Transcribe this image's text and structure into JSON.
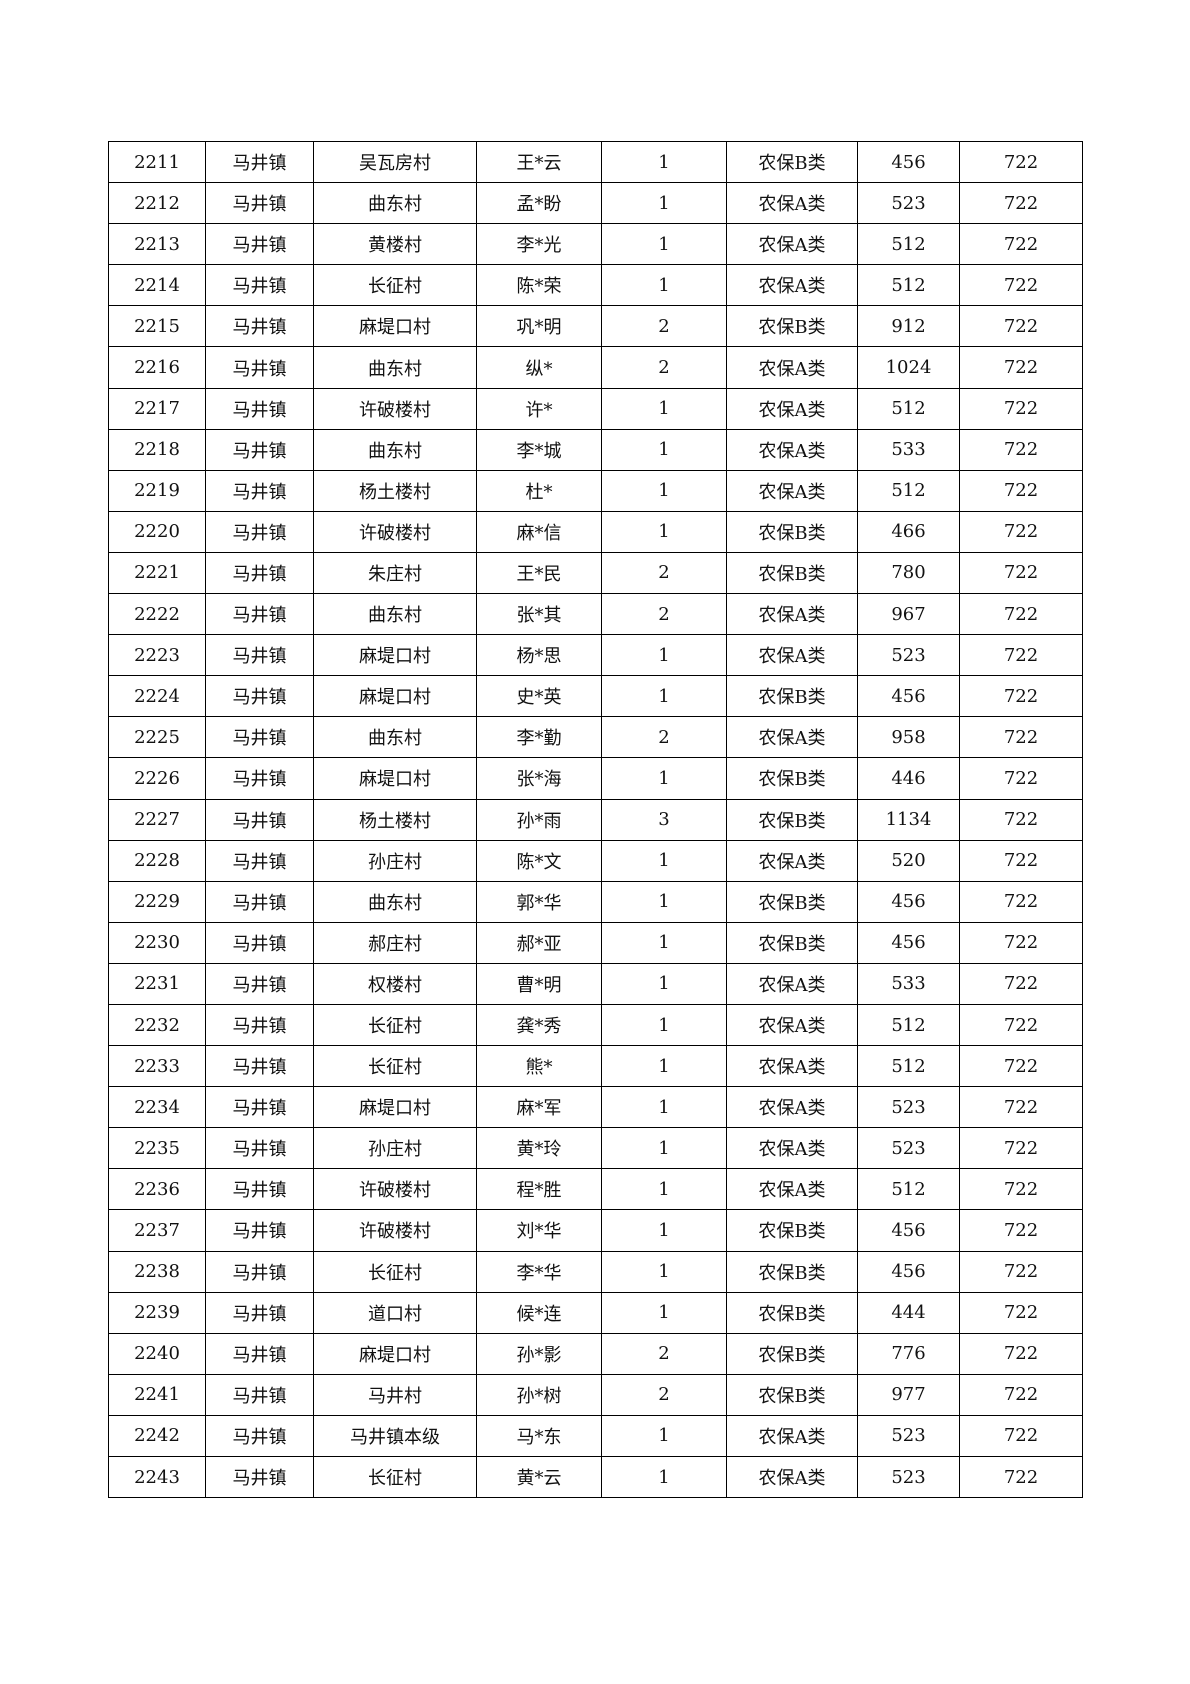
{
  "rows": [
    [
      "2211",
      "马井镇",
      "吴瓦房村",
      "王*云",
      "1",
      "农保B类",
      "456",
      "722"
    ],
    [
      "2212",
      "马井镇",
      "曲东村",
      "孟*盼",
      "1",
      "农保A类",
      "523",
      "722"
    ],
    [
      "2213",
      "马井镇",
      "黄楼村",
      "李*光",
      "1",
      "农保A类",
      "512",
      "722"
    ],
    [
      "2214",
      "马井镇",
      "长征村",
      "陈*荣",
      "1",
      "农保A类",
      "512",
      "722"
    ],
    [
      "2215",
      "马井镇",
      "麻堤口村",
      "巩*明",
      "2",
      "农保B类",
      "912",
      "722"
    ],
    [
      "2216",
      "马井镇",
      "曲东村",
      "纵*",
      "2",
      "农保A类",
      "1024",
      "722"
    ],
    [
      "2217",
      "马井镇",
      "许破楼村",
      "许*",
      "1",
      "农保A类",
      "512",
      "722"
    ],
    [
      "2218",
      "马井镇",
      "曲东村",
      "李*城",
      "1",
      "农保A类",
      "533",
      "722"
    ],
    [
      "2219",
      "马井镇",
      "杨土楼村",
      "杜*",
      "1",
      "农保A类",
      "512",
      "722"
    ],
    [
      "2220",
      "马井镇",
      "许破楼村",
      "麻*信",
      "1",
      "农保B类",
      "466",
      "722"
    ],
    [
      "2221",
      "马井镇",
      "朱庄村",
      "王*民",
      "2",
      "农保B类",
      "780",
      "722"
    ],
    [
      "2222",
      "马井镇",
      "曲东村",
      "张*其",
      "2",
      "农保A类",
      "967",
      "722"
    ],
    [
      "2223",
      "马井镇",
      "麻堤口村",
      "杨*思",
      "1",
      "农保A类",
      "523",
      "722"
    ],
    [
      "2224",
      "马井镇",
      "麻堤口村",
      "史*英",
      "1",
      "农保B类",
      "456",
      "722"
    ],
    [
      "2225",
      "马井镇",
      "曲东村",
      "李*勤",
      "2",
      "农保A类",
      "958",
      "722"
    ],
    [
      "2226",
      "马井镇",
      "麻堤口村",
      "张*海",
      "1",
      "农保B类",
      "446",
      "722"
    ],
    [
      "2227",
      "马井镇",
      "杨土楼村",
      "孙*雨",
      "3",
      "农保B类",
      "1134",
      "722"
    ],
    [
      "2228",
      "马井镇",
      "孙庄村",
      "陈*文",
      "1",
      "农保A类",
      "520",
      "722"
    ],
    [
      "2229",
      "马井镇",
      "曲东村",
      "郭*华",
      "1",
      "农保B类",
      "456",
      "722"
    ],
    [
      "2230",
      "马井镇",
      "郝庄村",
      "郝*亚",
      "1",
      "农保B类",
      "456",
      "722"
    ],
    [
      "2231",
      "马井镇",
      "权楼村",
      "曹*明",
      "1",
      "农保A类",
      "533",
      "722"
    ],
    [
      "2232",
      "马井镇",
      "长征村",
      "龚*秀",
      "1",
      "农保A类",
      "512",
      "722"
    ],
    [
      "2233",
      "马井镇",
      "长征村",
      "熊*",
      "1",
      "农保A类",
      "512",
      "722"
    ],
    [
      "2234",
      "马井镇",
      "麻堤口村",
      "麻*军",
      "1",
      "农保A类",
      "523",
      "722"
    ],
    [
      "2235",
      "马井镇",
      "孙庄村",
      "黄*玲",
      "1",
      "农保A类",
      "523",
      "722"
    ],
    [
      "2236",
      "马井镇",
      "许破楼村",
      "程*胜",
      "1",
      "农保A类",
      "512",
      "722"
    ],
    [
      "2237",
      "马井镇",
      "许破楼村",
      "刘*华",
      "1",
      "农保B类",
      "456",
      "722"
    ],
    [
      "2238",
      "马井镇",
      "长征村",
      "李*华",
      "1",
      "农保B类",
      "456",
      "722"
    ],
    [
      "2239",
      "马井镇",
      "道口村",
      "候*连",
      "1",
      "农保B类",
      "444",
      "722"
    ],
    [
      "2240",
      "马井镇",
      "麻堤口村",
      "孙*影",
      "2",
      "农保B类",
      "776",
      "722"
    ],
    [
      "2241",
      "马井镇",
      "马井村",
      "孙*树",
      "2",
      "农保B类",
      "977",
      "722"
    ],
    [
      "2242",
      "马井镇",
      "马井镇本级",
      "马*东",
      "1",
      "农保A类",
      "523",
      "722"
    ],
    [
      "2243",
      "马井镇",
      "长征村",
      "黄*云",
      "1",
      "农保A类",
      "523",
      "722"
    ]
  ]
}
